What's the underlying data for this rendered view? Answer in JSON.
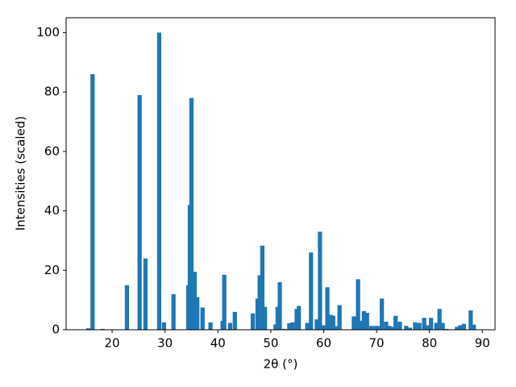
{
  "chart_data": {
    "type": "bar",
    "xlabel": "2θ (°)",
    "ylabel": "Intensities (scaled)",
    "x": [
      15.5,
      16.3,
      18.2,
      22.8,
      25.2,
      26.3,
      28.9,
      29.8,
      31.6,
      34.4,
      34.7,
      35.0,
      35.6,
      36.1,
      37.1,
      38.6,
      40.9,
      41.2,
      42.3,
      43.2,
      46.6,
      47.5,
      47.9,
      48.4,
      48.9,
      50.9,
      51.3,
      51.7,
      52.6,
      53.5,
      54.1,
      54.9,
      55.3,
      56.9,
      57.6,
      58.7,
      59.3,
      59.9,
      60.7,
      61.3,
      61.8,
      62.4,
      63.0,
      65.7,
      66.5,
      67.1,
      67.6,
      68.2,
      69.0,
      69.8,
      70.5,
      71.0,
      71.8,
      72.4,
      73.1,
      73.6,
      74.4,
      75.6,
      76.3,
      77.3,
      78.1,
      79.0,
      79.6,
      80.3,
      81.3,
      81.9,
      82.5,
      83.2,
      85.2,
      85.8,
      86.5,
      87.8,
      88.4
    ],
    "values": [
      0.5,
      86,
      0.3,
      15,
      79,
      24,
      100,
      2.5,
      12,
      15,
      42,
      78,
      19.5,
      11,
      7.5,
      2.5,
      3,
      18.5,
      2.3,
      6,
      5.5,
      10.5,
      18.3,
      28.3,
      7.7,
      1.8,
      7.7,
      16,
      0.3,
      2.2,
      2.5,
      7,
      8,
      2.3,
      26,
      3.5,
      33,
      1.5,
      14.3,
      5,
      4.7,
      1.2,
      8.3,
      4.5,
      17,
      3,
      6.3,
      5.7,
      1.3,
      1.3,
      1.3,
      10.5,
      2.7,
      1.3,
      1,
      4.7,
      2.7,
      1.3,
      0.7,
      2.5,
      2.3,
      4,
      1.5,
      4,
      2.3,
      7,
      2.3,
      0.3,
      1,
      1.5,
      2,
      6.5,
      1.7
    ],
    "color": "#1f77b4",
    "xlim": [
      11.3,
      92.4
    ],
    "xticks": [
      20,
      30,
      40,
      50,
      60,
      70,
      80,
      90
    ],
    "ylim": [
      0,
      105
    ],
    "yticks": [
      0,
      20,
      40,
      60,
      80,
      100
    ]
  }
}
